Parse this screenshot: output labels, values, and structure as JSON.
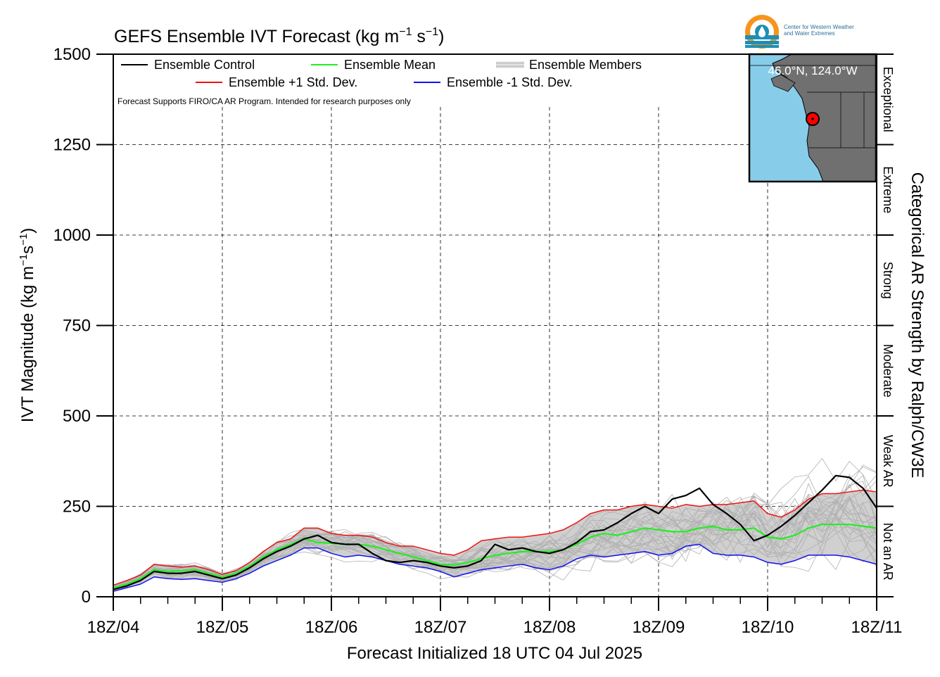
{
  "chart_data": {
    "type": "line",
    "title": "GEFS Ensemble IVT Forecast (kg m⁻¹ s⁻¹)",
    "title_parts": {
      "main": "GEFS Ensemble IVT Forecast (kg m",
      "exp1": "−1",
      "mid": " s",
      "exp2": "−1",
      "end": ")"
    },
    "ylabel_parts": {
      "main": "IVT Magnitude (kg m",
      "exp1": "−1",
      "mid": "s",
      "exp2": "−1",
      "end": ")"
    },
    "xlabel": "Forecast Initialized 18 UTC 04 Jul 2025",
    "right_label": "Categorical AR Strength by Ralph/CW3E",
    "note": "Forecast Supports FIRO/CA AR Program. Intended for research purposes only",
    "x_ticks": [
      "18Z/04",
      "18Z/05",
      "18Z/06",
      "18Z/07",
      "18Z/08",
      "18Z/09",
      "18Z/10",
      "18Z/11"
    ],
    "x_range_days": [
      0,
      7
    ],
    "ylim": [
      0,
      1500
    ],
    "y_ticks": [
      0,
      250,
      500,
      750,
      1000,
      1250,
      1500
    ],
    "grid": true,
    "legend": [
      {
        "label": "Ensemble Control",
        "color": "#000000"
      },
      {
        "label": "Ensemble Mean",
        "color": "#22ee22"
      },
      {
        "label": "Ensemble Members",
        "color": "#b0b0b0"
      },
      {
        "label": "Ensemble +1 Std. Dev.",
        "color": "#ee1111"
      },
      {
        "label": "Ensemble -1 Std. Dev.",
        "color": "#1111ee"
      }
    ],
    "categories_ar": [
      {
        "label": "Not an AR",
        "range": [
          0,
          250
        ]
      },
      {
        "label": "Weak AR",
        "range": [
          250,
          500
        ]
      },
      {
        "label": "Moderate",
        "range": [
          500,
          750
        ]
      },
      {
        "label": "Strong",
        "range": [
          750,
          1000
        ]
      },
      {
        "label": "Extreme",
        "range": [
          1000,
          1250
        ]
      },
      {
        "label": "Exceptional",
        "range": [
          1250,
          1500
        ]
      }
    ],
    "inset_map": {
      "label": "46.0°N, 124.0°W"
    },
    "logo_text": [
      "Center for Western Weather",
      "and Water Extremes"
    ],
    "series": [
      {
        "name": "Ensemble Control",
        "color": "#000000",
        "values": [
          20,
          30,
          45,
          70,
          65,
          65,
          70,
          60,
          50,
          60,
          80,
          105,
          125,
          140,
          160,
          170,
          150,
          145,
          145,
          120,
          100,
          95,
          100,
          95,
          85,
          80,
          85,
          100,
          145,
          130,
          135,
          125,
          120,
          130,
          150,
          180,
          185,
          205,
          230,
          250,
          230,
          270,
          280,
          300,
          255,
          230,
          200,
          155,
          170,
          195,
          225,
          260,
          295,
          335,
          330,
          300,
          245
        ]
      },
      {
        "name": "Ensemble Mean",
        "color": "#22ee22",
        "values": [
          25,
          35,
          50,
          75,
          70,
          72,
          75,
          65,
          55,
          65,
          85,
          110,
          130,
          145,
          160,
          150,
          148,
          145,
          145,
          140,
          130,
          120,
          110,
          100,
          90,
          88,
          95,
          105,
          115,
          120,
          125,
          125,
          125,
          130,
          145,
          165,
          175,
          170,
          180,
          190,
          185,
          180,
          180,
          190,
          195,
          185,
          185,
          190,
          165,
          160,
          170,
          190,
          200,
          200,
          200,
          195,
          190
        ]
      },
      {
        "name": "Ensemble +1 Std. Dev.",
        "color": "#ee1111",
        "values": [
          32,
          45,
          60,
          90,
          85,
          82,
          85,
          75,
          62,
          72,
          95,
          125,
          150,
          160,
          190,
          190,
          175,
          170,
          170,
          165,
          150,
          140,
          140,
          130,
          120,
          115,
          130,
          155,
          160,
          165,
          165,
          170,
          175,
          185,
          205,
          230,
          240,
          240,
          250,
          255,
          250,
          245,
          255,
          250,
          255,
          255,
          260,
          265,
          230,
          220,
          240,
          270,
          285,
          285,
          290,
          295,
          290
        ]
      },
      {
        "name": "Ensemble -1 Std. Dev.",
        "color": "#1111ee",
        "values": [
          15,
          25,
          35,
          55,
          50,
          48,
          50,
          45,
          40,
          50,
          65,
          85,
          100,
          115,
          135,
          135,
          120,
          110,
          115,
          110,
          100,
          90,
          85,
          80,
          70,
          55,
          65,
          75,
          80,
          85,
          90,
          80,
          75,
          85,
          105,
          115,
          110,
          115,
          120,
          125,
          115,
          120,
          140,
          145,
          120,
          115,
          115,
          110,
          95,
          90,
          100,
          115,
          115,
          115,
          110,
          100,
          90
        ]
      }
    ]
  }
}
